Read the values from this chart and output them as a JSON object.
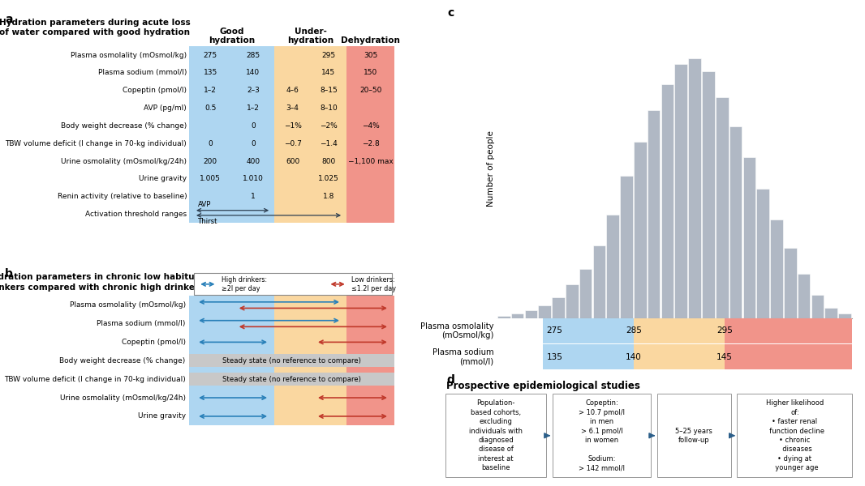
{
  "colors": {
    "blue": "#AED6F1",
    "yellow": "#FAD7A0",
    "red": "#F1948A",
    "blue_arrow": "#2980B9",
    "red_arrow": "#C0392B",
    "hist_bar": "#B0B8C4",
    "steady_gray": "#C8C8C8"
  },
  "panel_a": {
    "rows": [
      {
        "label": "Plasma osmolality (mOsmol/kg)",
        "vals": [
          "275",
          "285",
          "",
          "295",
          "305"
        ]
      },
      {
        "label": "Plasma sodium (mmol/l)",
        "vals": [
          "135",
          "140",
          "",
          "145",
          "150"
        ]
      },
      {
        "label": "Copeptin (pmol/l)",
        "vals": [
          "1–2",
          "2–3",
          "4–6",
          "8–15",
          "20–50"
        ]
      },
      {
        "label": "AVP (pg/ml)",
        "vals": [
          "0.5",
          "1–2",
          "3–4",
          "8–10",
          ""
        ]
      },
      {
        "label": "Body weight decrease (% change)",
        "vals": [
          "",
          "0",
          "−1%",
          "−2%",
          "−4%"
        ]
      },
      {
        "label": "TBW volume deficit (l change in 70-kg individual)",
        "vals": [
          "0",
          "0",
          "−0.7",
          "−1.4",
          "−2.8"
        ]
      },
      {
        "label": "Urine osmolality (mOsmol/kg/24h)",
        "vals": [
          "200",
          "400",
          "600",
          "800",
          "−1,100 max"
        ]
      },
      {
        "label": "Urine gravity",
        "vals": [
          "1.005",
          "1.010",
          "",
          "1.025",
          ""
        ]
      },
      {
        "label": "Renin activity (relative to baseline)",
        "vals": [
          "",
          "1",
          "",
          "1.8",
          ""
        ]
      },
      {
        "label": "Activation threshold ranges",
        "vals": [
          "",
          "",
          "",
          "",
          ""
        ]
      }
    ]
  },
  "panel_b": {
    "rows": [
      {
        "label": "Plasma osmolality (mOsmol/kg)",
        "type": "arrows_long"
      },
      {
        "label": "Plasma sodium (mmol/l)",
        "type": "arrows_long"
      },
      {
        "label": "Copeptin (pmol/l)",
        "type": "arrows_short"
      },
      {
        "label": "Body weight decrease (% change)",
        "type": "steady"
      },
      {
        "label": "TBW volume deficit (l change in 70-kg individual)",
        "type": "steady"
      },
      {
        "label": "Urine osmolality (mOsmol/kg/24h)",
        "type": "arrows_short"
      },
      {
        "label": "Urine gravity",
        "type": "arrows_short"
      }
    ]
  },
  "panel_c": {
    "hist_values": [
      1,
      2,
      3,
      5,
      8,
      13,
      19,
      28,
      40,
      55,
      68,
      80,
      90,
      98,
      100,
      95,
      85,
      74,
      62,
      50,
      38,
      27,
      17,
      9,
      4,
      2
    ],
    "ylabel": "Number of people",
    "xmin": 270,
    "xmax": 309,
    "band_breaks": [
      275,
      285,
      295
    ]
  },
  "panel_d": {
    "title": "Prospective epidemiological studies",
    "boxes": [
      "Population-\nbased cohorts,\nexcluding\nindividuals with\ndiagnosed\ndisease of\ninterest at\nbaseline",
      "Copeptin:\n> 10.7 pmol/l\nin men\n> 6.1 pmol/l\nin women\n\nSodium:\n> 142 mmol/l",
      "5–25 years\nfollow-up",
      "Higher likelihood\nof:\n• faster renal\n  function decline\n• chronic\n  diseases\n• dying at\n  younger age"
    ]
  }
}
